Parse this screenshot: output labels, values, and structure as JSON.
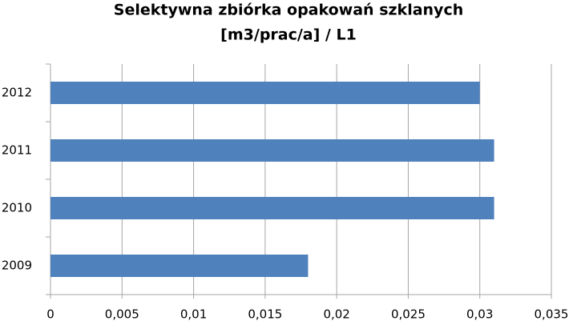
{
  "chart_data": {
    "type": "barh",
    "title": "Selektywna zbiórka opakowań szklanych",
    "subtitle": "[m3/prac/a] / L1",
    "categories": [
      "2009",
      "2010",
      "2011",
      "2012"
    ],
    "values": [
      0.018,
      0.031,
      0.031,
      0.03
    ],
    "color": "#4f81bd",
    "xlim": [
      0,
      0.035
    ],
    "xticks": [
      0,
      {
        "value": 0.005,
        "label": "0,005"
      },
      {
        "value": 0.01,
        "label": "0,01"
      },
      {
        "value": 0.015,
        "label": "0,015"
      },
      {
        "value": 0.02,
        "label": "0,02"
      },
      {
        "value": 0.025,
        "label": "0,025"
      },
      {
        "value": 0.03,
        "label": "0,03"
      },
      {
        "value": 0.035,
        "label": "0,035"
      }
    ],
    "grid": true
  }
}
